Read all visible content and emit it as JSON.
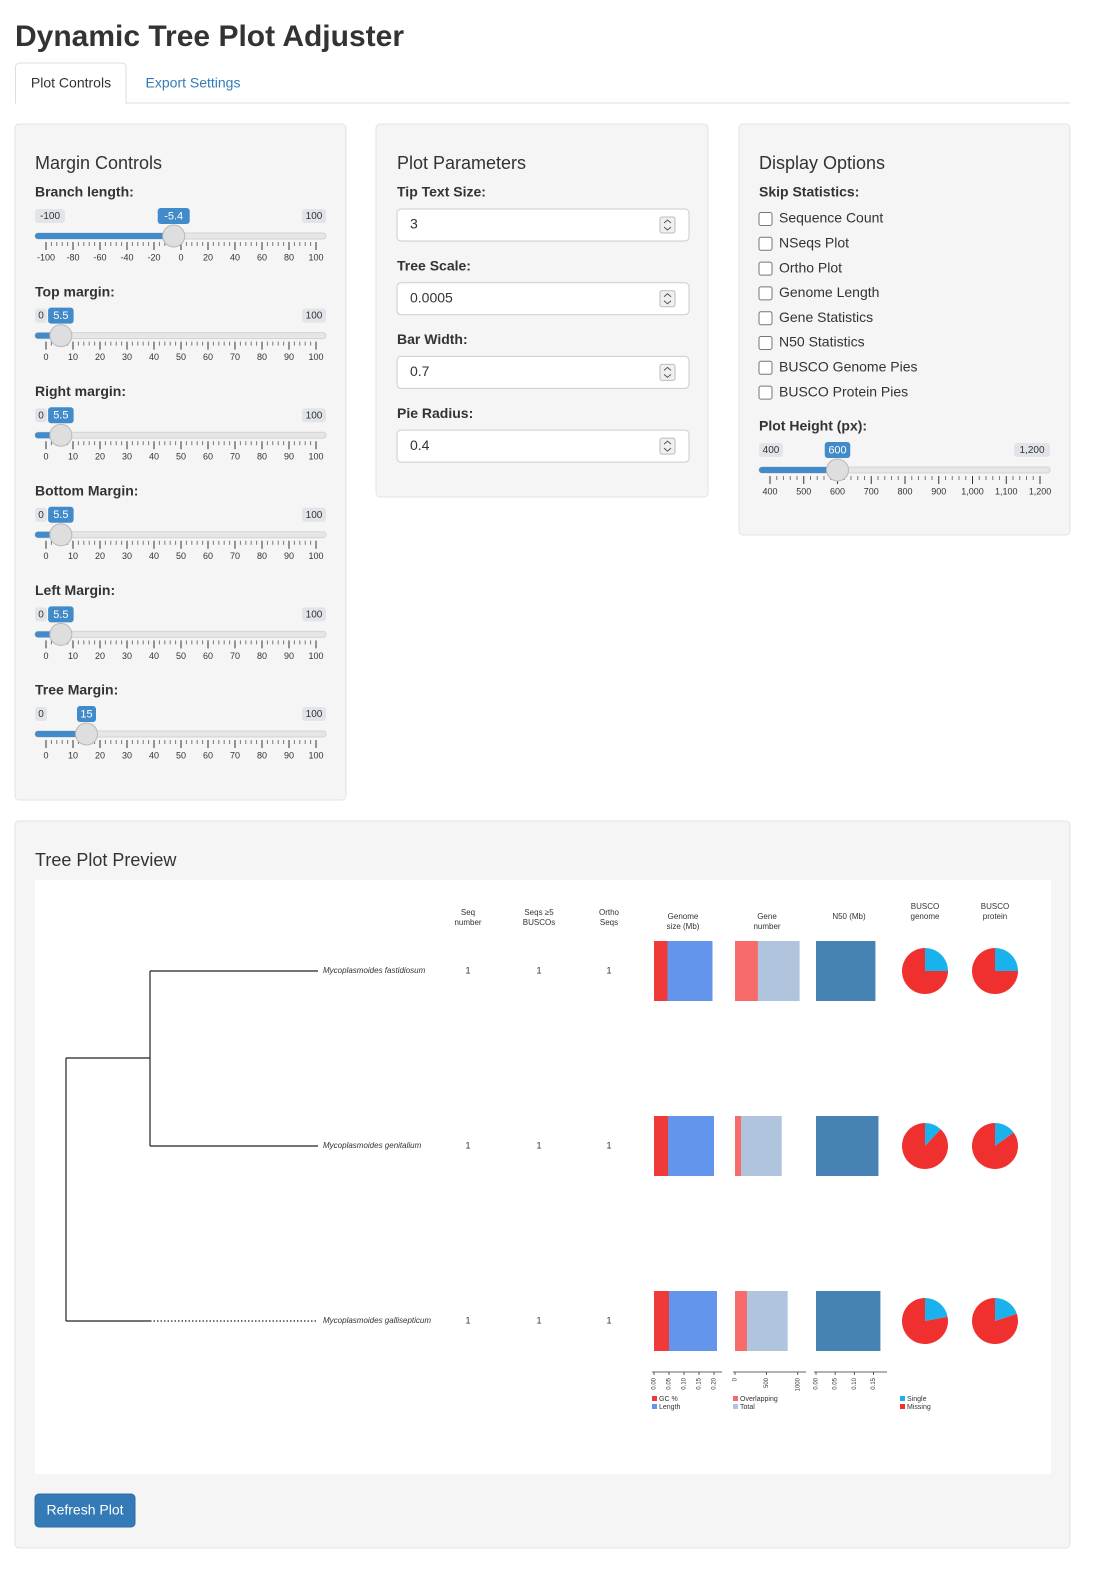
{
  "header": {
    "title": "Dynamic Tree Plot Adjuster"
  },
  "tabs": [
    "Plot Controls",
    "Export Settings"
  ],
  "margin_controls": {
    "title": "Margin Controls",
    "sliders": [
      {
        "label": "Branch length:",
        "min": -100,
        "max": 100,
        "value": -5.4,
        "ticks": [
          -100,
          -80,
          -60,
          -40,
          -20,
          0,
          20,
          40,
          60,
          80,
          100
        ]
      },
      {
        "label": "Top margin:",
        "min": 0,
        "max": 100,
        "value": 5.5,
        "ticks": [
          0,
          10,
          20,
          30,
          40,
          50,
          60,
          70,
          80,
          90,
          100
        ]
      },
      {
        "label": "Right margin:",
        "min": 0,
        "max": 100,
        "value": 5.5,
        "ticks": [
          0,
          10,
          20,
          30,
          40,
          50,
          60,
          70,
          80,
          90,
          100
        ]
      },
      {
        "label": "Bottom Margin:",
        "min": 0,
        "max": 100,
        "value": 5.5,
        "ticks": [
          0,
          10,
          20,
          30,
          40,
          50,
          60,
          70,
          80,
          90,
          100
        ]
      },
      {
        "label": "Left Margin:",
        "min": 0,
        "max": 100,
        "value": 5.5,
        "ticks": [
          0,
          10,
          20,
          30,
          40,
          50,
          60,
          70,
          80,
          90,
          100
        ]
      },
      {
        "label": "Tree Margin:",
        "min": 0,
        "max": 100,
        "value": 15,
        "ticks": [
          0,
          10,
          20,
          30,
          40,
          50,
          60,
          70,
          80,
          90,
          100
        ]
      }
    ]
  },
  "plot_parameters": {
    "title": "Plot Parameters",
    "inputs": [
      {
        "label": "Tip Text Size:",
        "value": 3
      },
      {
        "label": "Tree Scale:",
        "value": 0.0005
      },
      {
        "label": "Bar Width:",
        "value": 0.7
      },
      {
        "label": "Pie Radius:",
        "value": 0.4
      }
    ]
  },
  "display_options": {
    "title": "Display Options",
    "skip_label": "Skip Statistics:",
    "checkboxes": [
      "Sequence Count",
      "NSeqs Plot",
      "Ortho Plot",
      "Genome Length",
      "Gene Statistics",
      "N50 Statistics",
      "BUSCO Genome Pies",
      "BUSCO Protein Pies"
    ],
    "height_slider": {
      "label": "Plot Height (px):",
      "min": 400,
      "max": {
        "value": 1200,
        "label": "1,200"
      },
      "value": 600,
      "ticks": [
        400,
        500,
        600,
        700,
        800,
        900,
        {
          "value": 1000,
          "label": "1,000"
        },
        {
          "value": 1100,
          "label": "1,100"
        },
        {
          "value": 1200,
          "label": "1,200"
        }
      ]
    }
  },
  "preview": {
    "title": "Tree Plot Preview",
    "button": "Refresh Plot",
    "plot": {
      "columns": [
        [
          "Seq",
          "number"
        ],
        [
          "Seqs ≥5",
          "BUSCOs"
        ],
        [
          "Ortho",
          "Seqs"
        ],
        [
          "Genome",
          "size (Mb)"
        ],
        [
          "Gene",
          "number"
        ],
        [
          "N50 (Mb)"
        ],
        [
          "BUSCO",
          "genome"
        ],
        [
          "BUSCO",
          "protein"
        ]
      ],
      "taxa": [
        "Mycoplasmoides fastidiosum",
        "Mycoplasmoides genitalium",
        "Mycoplasmoides gallisepticum"
      ],
      "seq_number": [
        1,
        1,
        1
      ],
      "seqs_buscos": [
        1,
        1,
        1
      ],
      "ortho_seqs": [
        1,
        1,
        1
      ],
      "genome_size": {
        "xlim": [
          0,
          0.22
        ],
        "xticks": [
          {
            "value": 0,
            "label": "0.00"
          },
          {
            "value": 0.05,
            "label": "0.05"
          },
          {
            "value": 0.1,
            "label": "0.10"
          },
          {
            "value": 0.15,
            "label": "0.15"
          },
          {
            "value": 0.2,
            "label": "0.20"
          }
        ],
        "series": [
          {
            "name": "Length",
            "color": "#6495ed",
            "values": [
              0.195,
              0.2,
              0.21
            ]
          },
          {
            "name": "GC %",
            "color": "#f03a3a",
            "values": [
              0.045,
              0.047,
              0.05
            ]
          }
        ]
      },
      "gene_number": {
        "xlim": [
          0,
          1100
        ],
        "xticks": [
          0,
          500,
          1000
        ],
        "series": [
          {
            "name": "Total",
            "color": "#b0c4de",
            "values": [
              1030,
              745,
              840
            ]
          },
          {
            "name": "Overlapping",
            "color": "#f76b6b",
            "values": [
              365,
              95,
              190
            ]
          }
        ]
      },
      "n50": {
        "xlim": [
          0,
          0.18
        ],
        "xticks": [
          {
            "value": 0,
            "label": "0.00"
          },
          {
            "value": 0.05,
            "label": "0.05"
          },
          {
            "value": 0.1,
            "label": "0.10"
          },
          {
            "value": 0.15,
            "label": "0.15"
          }
        ],
        "color": "#4682b4",
        "values": [
          0.155,
          0.163,
          0.168
        ]
      },
      "busco": {
        "legend": [
          {
            "name": "Single",
            "color": "#1ab2ec"
          },
          {
            "name": "Missing",
            "color": "#f0302e"
          }
        ],
        "genome": [
          [
            25,
            75
          ],
          [
            12,
            88
          ],
          [
            22,
            78
          ]
        ],
        "protein": [
          [
            25,
            75
          ],
          [
            15,
            85
          ],
          [
            20,
            80
          ]
        ]
      }
    }
  }
}
